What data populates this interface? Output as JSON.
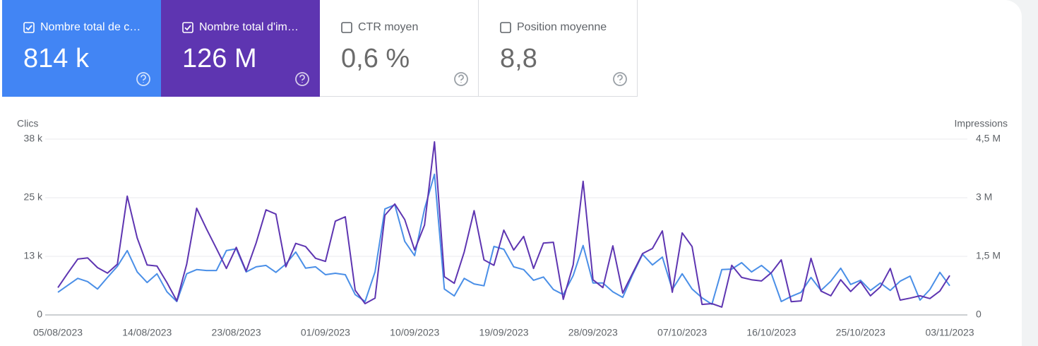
{
  "cards": [
    {
      "label": "Nombre total de c…",
      "value": "814 k",
      "checked": true,
      "color": "#4285f4"
    },
    {
      "label": "Nombre total d'im…",
      "value": "126 M",
      "checked": true,
      "color": "#5e35b1"
    },
    {
      "label": "CTR moyen",
      "value": "0,6 %",
      "checked": false,
      "color": "#ffffff"
    },
    {
      "label": "Position moyenne",
      "value": "8,8",
      "checked": false,
      "color": "#ffffff"
    }
  ],
  "chart_data": {
    "type": "line",
    "ylabel": "Clics",
    "y2label": "Impressions",
    "categories": [
      "05/08/2023",
      null,
      null,
      null,
      null,
      null,
      null,
      null,
      null,
      "14/08/2023",
      null,
      null,
      null,
      null,
      null,
      null,
      null,
      null,
      "23/08/2023",
      null,
      null,
      null,
      null,
      null,
      null,
      null,
      null,
      "01/09/2023",
      null,
      null,
      null,
      null,
      null,
      null,
      null,
      null,
      "10/09/2023",
      null,
      null,
      null,
      null,
      null,
      null,
      null,
      null,
      "19/09/2023",
      null,
      null,
      null,
      null,
      null,
      null,
      null,
      null,
      "28/09/2023",
      null,
      null,
      null,
      null,
      null,
      null,
      null,
      null,
      "07/10/2023",
      null,
      null,
      null,
      null,
      null,
      null,
      null,
      null,
      "16/10/2023",
      null,
      null,
      null,
      null,
      null,
      null,
      null,
      null,
      "25/10/2023",
      null,
      null,
      null,
      null,
      null,
      null,
      null,
      null,
      "03/11/2023"
    ],
    "series": [
      {
        "color": "#4a8fe7",
        "axis": "y",
        "values": [
          4900,
          6400,
          7900,
          7200,
          5600,
          8100,
          10500,
          13900,
          9300,
          7000,
          8900,
          5000,
          2900,
          8900,
          9800,
          9600,
          9600,
          13900,
          14300,
          9300,
          10400,
          10700,
          9200,
          11000,
          13600,
          10100,
          10400,
          8700,
          9000,
          8700,
          4400,
          2900,
          9300,
          22900,
          23800,
          15900,
          12800,
          22900,
          30400,
          5600,
          4100,
          7900,
          6700,
          6300,
          14800,
          14200,
          10400,
          9800,
          7500,
          8200,
          5500,
          4400,
          8500,
          15000,
          6900,
          6900,
          5000,
          3800,
          8700,
          13100,
          10800,
          12500,
          5500,
          8900,
          5600,
          3700,
          2300,
          9800,
          9900,
          11300,
          9300,
          10700,
          8900,
          2900,
          4000,
          4900,
          8100,
          5300,
          7300,
          10100,
          6600,
          7500,
          5300,
          6900,
          5300,
          7300,
          8400,
          3200,
          5500,
          9200,
          6300
        ]
      },
      {
        "color": "#5e35b1",
        "axis": "y2",
        "values": [
          700000,
          1070000,
          1430000,
          1460000,
          1210000,
          1070000,
          1300000,
          3040000,
          1970000,
          1280000,
          1250000,
          830000,
          360000,
          1300000,
          2730000,
          2200000,
          1700000,
          1190000,
          1730000,
          1120000,
          1840000,
          2690000,
          2580000,
          1230000,
          1830000,
          1750000,
          1450000,
          1370000,
          2400000,
          2510000,
          630000,
          290000,
          430000,
          2550000,
          2840000,
          2440000,
          1660000,
          2300000,
          4430000,
          980000,
          810000,
          1610000,
          2670000,
          1410000,
          1270000,
          2170000,
          1660000,
          2010000,
          1190000,
          1840000,
          1860000,
          400000,
          1280000,
          3420000,
          900000,
          700000,
          1770000,
          560000,
          1070000,
          1570000,
          1700000,
          2150000,
          580000,
          2100000,
          1750000,
          270000,
          290000,
          200000,
          1270000,
          960000,
          900000,
          870000,
          1080000,
          1410000,
          340000,
          360000,
          1450000,
          610000,
          490000,
          900000,
          600000,
          850000,
          490000,
          720000,
          1190000,
          380000,
          430000,
          490000,
          420000,
          610000,
          1010000
        ]
      }
    ],
    "ylim": [
      0,
      38000
    ],
    "yticks": [
      0,
      {
        "value": 12667,
        "label": "13 k"
      },
      {
        "value": 25333,
        "label": "25 k"
      },
      {
        "value": 38000,
        "label": "38 k"
      }
    ],
    "y2lim": [
      0,
      4500000
    ],
    "y2ticks": [
      0,
      {
        "value": 1500000,
        "label": "1,5 M"
      },
      {
        "value": 3000000,
        "label": "3 M"
      },
      {
        "value": 4500000,
        "label": "4,5 M"
      }
    ],
    "grid": true
  }
}
